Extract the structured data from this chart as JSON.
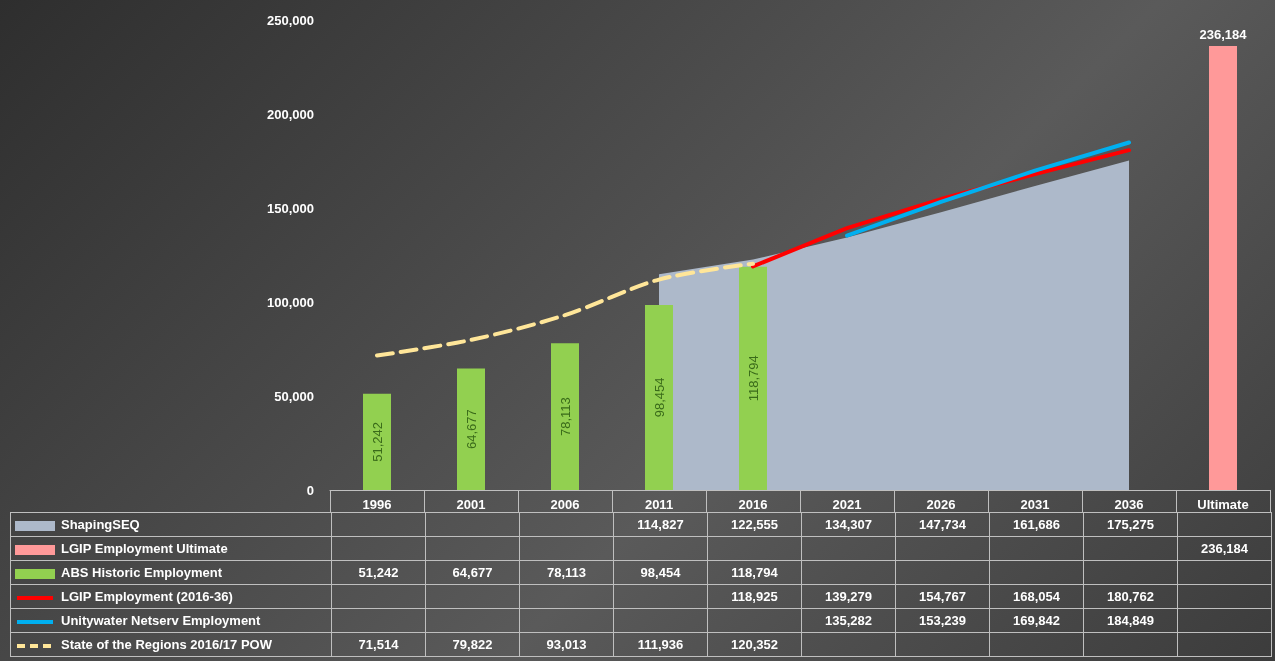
{
  "chart_data": {
    "type": "bar",
    "categories": [
      "1996",
      "2001",
      "2006",
      "2011",
      "2016",
      "2021",
      "2026",
      "2031",
      "2036",
      "Ultimate"
    ],
    "ylim": [
      0,
      250000
    ],
    "yticks": [
      0,
      {
        "value": 50000,
        "label": "50,000"
      },
      {
        "value": 100000,
        "label": "100,000"
      },
      {
        "value": 150000,
        "label": "150,000"
      },
      {
        "value": 200000,
        "label": "200,000"
      },
      {
        "value": 250000,
        "label": "250,000"
      }
    ],
    "grid": false,
    "legend": "bottom",
    "series": [
      {
        "name": "ShapingSEQ",
        "type": "area",
        "color": "#adb9ca",
        "values": [
          null,
          null,
          null,
          114827,
          122555,
          134307,
          147734,
          161686,
          175275,
          null
        ],
        "value_labels": [
          null,
          null,
          null,
          "114,827",
          "122,555",
          "134,307",
          "147,734",
          "161,686",
          "175,275",
          null
        ]
      },
      {
        "name": "LGIP Employment Ultimate",
        "color": "#ff9999",
        "values": [
          null,
          null,
          null,
          null,
          null,
          null,
          null,
          null,
          null,
          236184
        ],
        "value_labels": [
          null,
          null,
          null,
          null,
          null,
          null,
          null,
          null,
          null,
          "236,184"
        ]
      },
      {
        "name": "ABS Historic Employment",
        "color": "#92d050",
        "values": [
          51242,
          64677,
          78113,
          98454,
          118794,
          null,
          null,
          null,
          null,
          null
        ],
        "value_labels": [
          "51,242",
          "64,677",
          "78,113",
          "98,454",
          "118,794",
          null,
          null,
          null,
          null,
          null
        ]
      },
      {
        "name": "LGIP Employment (2016-36)",
        "type": "line",
        "color": "#ff0000",
        "line_style": "solid",
        "values": [
          null,
          null,
          null,
          null,
          118925,
          139279,
          154767,
          168054,
          180762,
          null
        ],
        "value_labels": [
          null,
          null,
          null,
          null,
          "118,925",
          "139,279",
          "154,767",
          "168,054",
          "180,762",
          null
        ]
      },
      {
        "name": "Unitywater Netserv Employment",
        "type": "line",
        "color": "#00b0f0",
        "line_style": "solid",
        "values": [
          null,
          null,
          null,
          null,
          null,
          135282,
          153239,
          169842,
          184849,
          null
        ],
        "value_labels": [
          null,
          null,
          null,
          null,
          null,
          "135,282",
          "153,239",
          "169,842",
          "184,849",
          null
        ]
      },
      {
        "name": "State of the Regions 2016/17 POW",
        "type": "line",
        "color": "#ffe699",
        "line_style": "dashed",
        "values": [
          71514,
          79822,
          93013,
          111936,
          120352,
          null,
          null,
          null,
          null,
          null
        ],
        "value_labels": [
          "71,514",
          "79,822",
          "93,013",
          "111,936",
          "120,352",
          null,
          null,
          null,
          null,
          null
        ]
      }
    ]
  }
}
